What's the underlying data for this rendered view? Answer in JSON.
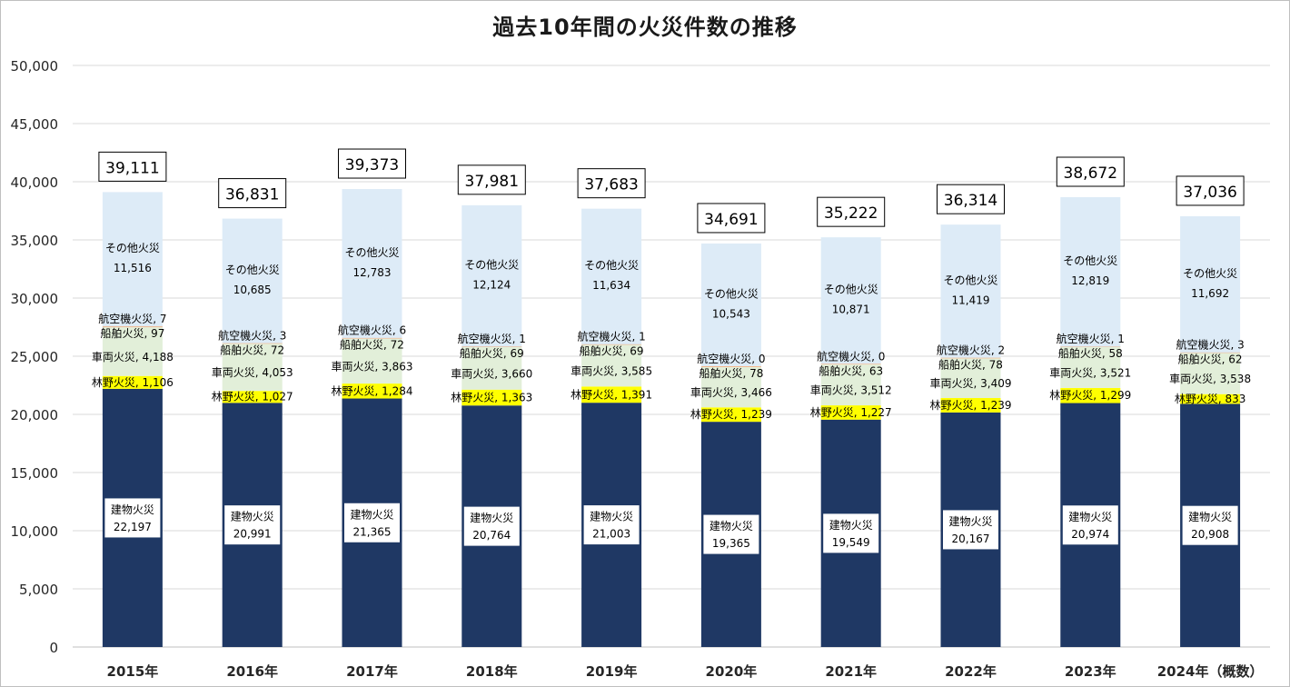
{
  "chart_data": {
    "type": "bar",
    "stacked": true,
    "title": "過去10年間の火災件数の推移",
    "xlabel": "",
    "ylabel": "",
    "ylim": [
      0,
      50000
    ],
    "yticks": [
      "0",
      "5,000",
      "10,000",
      "15,000",
      "20,000",
      "25,000",
      "30,000",
      "35,000",
      "40,000",
      "45,000",
      "50,000"
    ],
    "grid": true,
    "legend": "none",
    "categories": [
      "2015年",
      "2016年",
      "2017年",
      "2018年",
      "2019年",
      "2020年",
      "2021年",
      "2022年",
      "2023年",
      "2024年（概数）"
    ],
    "totals": [
      39111,
      36831,
      39373,
      37981,
      37683,
      34691,
      35222,
      36314,
      38672,
      37036
    ],
    "total_labels": [
      "39,111",
      "36,831",
      "39,373",
      "37,981",
      "37,683",
      "34,691",
      "35,222",
      "36,314",
      "38,672",
      "37,036"
    ],
    "series": [
      {
        "name": "建物火災",
        "color": "#1f3864",
        "values": [
          22197,
          20991,
          21365,
          20764,
          21003,
          19365,
          19549,
          20167,
          20974,
          20908
        ],
        "labels": [
          "22,197",
          "20,991",
          "21,365",
          "20,764",
          "21,003",
          "19,365",
          "19,549",
          "20,167",
          "20,974",
          "20,908"
        ]
      },
      {
        "name": "林野火災",
        "color": "#ffff00",
        "values": [
          1106,
          1027,
          1284,
          1363,
          1391,
          1239,
          1227,
          1239,
          1299,
          833
        ],
        "labels": [
          "1,106",
          "1,027",
          "1,284",
          "1,363",
          "1,391",
          "1,239",
          "1,227",
          "1,239",
          "1,299",
          "833"
        ]
      },
      {
        "name": "車両火災",
        "color": "#e2efd9",
        "values": [
          4188,
          4053,
          3863,
          3660,
          3585,
          3466,
          3512,
          3409,
          3521,
          3538
        ],
        "labels": [
          "4,188",
          "4,053",
          "3,863",
          "3,660",
          "3,585",
          "3,466",
          "3,512",
          "3,409",
          "3,521",
          "3,538"
        ]
      },
      {
        "name": "船舶火災",
        "color": "#f4b183",
        "values": [
          97,
          72,
          72,
          69,
          69,
          78,
          63,
          78,
          58,
          62
        ],
        "labels": [
          "97",
          "72",
          "72",
          "69",
          "69",
          "78",
          "63",
          "78",
          "58",
          "62"
        ]
      },
      {
        "name": "航空機火災",
        "color": "#d9d9d9",
        "values": [
          7,
          3,
          6,
          1,
          1,
          0,
          0,
          2,
          1,
          3
        ],
        "labels": [
          "7",
          "3",
          "6",
          "1",
          "1",
          "0",
          "0",
          "2",
          "1",
          "3"
        ]
      },
      {
        "name": "その他火災",
        "color": "#ddebf7",
        "values": [
          11516,
          10685,
          12783,
          12124,
          11634,
          10543,
          10871,
          11419,
          12819,
          11692
        ],
        "labels": [
          "11,516",
          "10,685",
          "12,783",
          "12,124",
          "11,634",
          "10,543",
          "10,871",
          "11,419",
          "12,819",
          "11,692"
        ]
      }
    ]
  }
}
